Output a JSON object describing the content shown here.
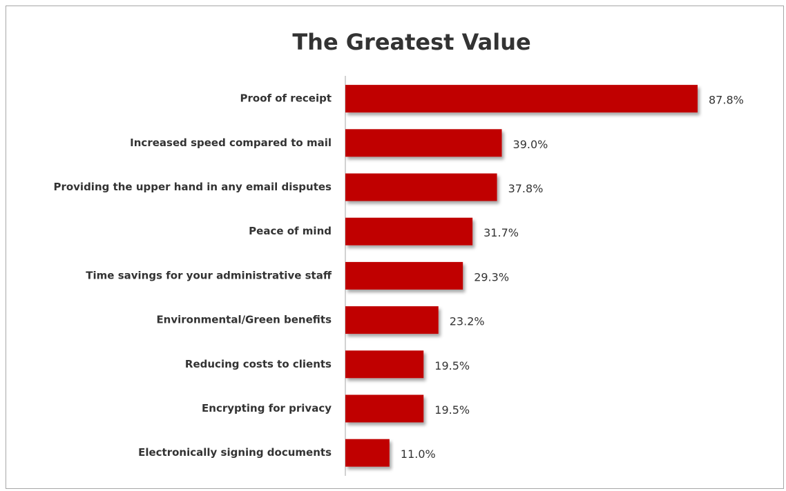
{
  "chart_data": {
    "type": "barh",
    "title": "The Greatest Value",
    "categories": [
      "Proof of receipt",
      "Increased speed compared to mail",
      "Providing the upper hand in any email disputes",
      "Peace of mind",
      "Time savings for your administrative staff",
      "Environmental/Green benefits",
      "Reducing costs to clients",
      "Encrypting for privacy",
      "Electronically signing documents"
    ],
    "values": [
      87.8,
      39.0,
      37.8,
      31.7,
      29.3,
      23.2,
      19.5,
      19.5,
      11.0
    ],
    "value_labels": [
      "87.8%",
      "39.0%",
      "37.8%",
      "31.7%",
      "29.3%",
      "23.2%",
      "19.5%",
      "19.5%",
      "11.0%"
    ],
    "color": "#c00000"
  }
}
